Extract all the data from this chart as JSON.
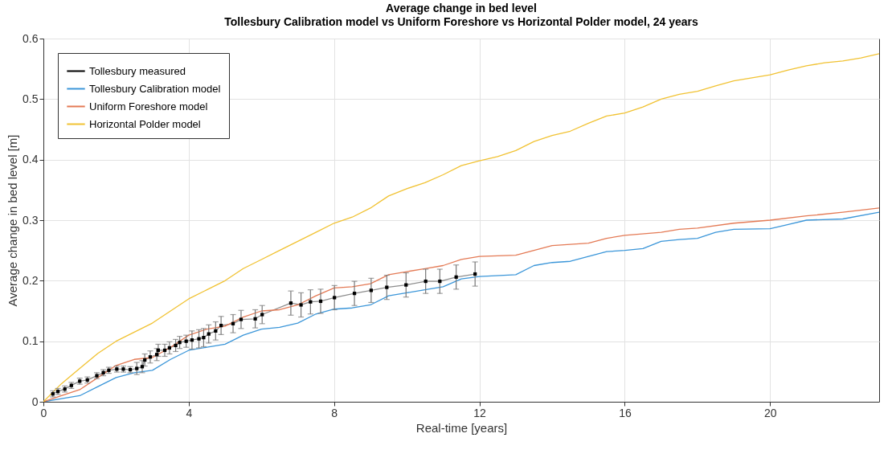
{
  "chart_data": {
    "type": "line",
    "title": "Average change in bed level",
    "subtitle": "Tollesbury Calibration model vs Uniform Foreshore vs Horizontal Polder model, 24 years",
    "xlabel": "Real-time [years]",
    "ylabel": "Average change in bed level [m]",
    "xlim": [
      0,
      23
    ],
    "xticks": [
      0,
      4,
      8,
      12,
      16,
      20
    ],
    "ylim": [
      0,
      0.6
    ],
    "yticks": [
      0,
      0.1,
      0.2,
      0.3,
      0.4,
      0.5,
      0.6
    ],
    "grid": true,
    "legend": "top left",
    "line_style": "solid",
    "series": [
      {
        "name": "Tollesbury measured",
        "color": "#000000",
        "marker": "square",
        "x": [
          0.26,
          0.4,
          0.59,
          0.77,
          1.0,
          1.21,
          1.47,
          1.65,
          1.8,
          2.02,
          2.2,
          2.39,
          2.57,
          2.72,
          2.79,
          2.94,
          3.12,
          3.16,
          3.34,
          3.47,
          3.64,
          3.75,
          3.93,
          4.09,
          4.28,
          4.41,
          4.55,
          4.74,
          4.89,
          5.22,
          5.44,
          5.83,
          6.02,
          6.81,
          7.09,
          7.35,
          7.63,
          8.01,
          8.56,
          9.02,
          9.45,
          9.98,
          10.52,
          10.91,
          11.36,
          11.88
        ],
        "values": [
          0.013,
          0.017,
          0.021,
          0.027,
          0.034,
          0.036,
          0.043,
          0.048,
          0.052,
          0.054,
          0.054,
          0.053,
          0.055,
          0.058,
          0.069,
          0.074,
          0.078,
          0.085,
          0.085,
          0.089,
          0.093,
          0.098,
          0.1,
          0.102,
          0.104,
          0.106,
          0.112,
          0.117,
          0.126,
          0.129,
          0.136,
          0.137,
          0.144,
          0.163,
          0.16,
          0.165,
          0.166,
          0.172,
          0.179,
          0.184,
          0.189,
          0.193,
          0.199,
          0.199,
          0.206,
          0.211
        ],
        "errors": [
          0.005,
          0.005,
          0.005,
          0.005,
          0.005,
          0.005,
          0.005,
          0.005,
          0.005,
          0.005,
          0.005,
          0.005,
          0.01,
          0.01,
          0.01,
          0.01,
          0.01,
          0.01,
          0.01,
          0.01,
          0.01,
          0.01,
          0.01,
          0.015,
          0.015,
          0.015,
          0.015,
          0.015,
          0.015,
          0.015,
          0.015,
          0.015,
          0.015,
          0.02,
          0.02,
          0.02,
          0.02,
          0.02,
          0.02,
          0.02,
          0.02,
          0.02,
          0.02,
          0.02,
          0.02,
          0.02
        ]
      },
      {
        "name": "Tollesbury Calibration model",
        "color": "#3b96d9",
        "x": [
          0,
          0.5,
          1,
          1.5,
          2,
          2.5,
          3,
          3.5,
          4,
          4.5,
          5,
          5.5,
          6,
          6.5,
          7,
          7.5,
          8,
          8.5,
          9,
          9.5,
          10,
          10.5,
          11,
          11.5,
          12,
          13,
          13.5,
          14,
          14.5,
          15,
          15.5,
          16,
          16.5,
          17,
          17.5,
          18,
          18.5,
          19,
          20,
          20.5,
          21,
          22,
          23
        ],
        "values": [
          0,
          0.005,
          0.01,
          0.025,
          0.04,
          0.048,
          0.052,
          0.07,
          0.085,
          0.09,
          0.095,
          0.11,
          0.12,
          0.123,
          0.13,
          0.145,
          0.153,
          0.155,
          0.16,
          0.175,
          0.18,
          0.185,
          0.19,
          0.203,
          0.207,
          0.21,
          0.225,
          0.23,
          0.232,
          0.24,
          0.248,
          0.25,
          0.253,
          0.265,
          0.268,
          0.27,
          0.28,
          0.285,
          0.286,
          0.293,
          0.3,
          0.302,
          0.313
        ]
      },
      {
        "name": "Uniform Foreshore model",
        "color": "#e47a55",
        "x": [
          0,
          0.5,
          1,
          1.5,
          2,
          2.5,
          3,
          3.5,
          4,
          4.5,
          5,
          5.5,
          6,
          6.5,
          7,
          7.5,
          8,
          8.5,
          9,
          9.5,
          10,
          10.5,
          11,
          11.5,
          12,
          13,
          13.5,
          14,
          15,
          15.5,
          16,
          17,
          17.5,
          18,
          19,
          20,
          21,
          22,
          23
        ],
        "values": [
          0,
          0.01,
          0.02,
          0.04,
          0.06,
          0.07,
          0.073,
          0.09,
          0.11,
          0.12,
          0.125,
          0.14,
          0.15,
          0.152,
          0.16,
          0.175,
          0.188,
          0.19,
          0.195,
          0.21,
          0.215,
          0.22,
          0.225,
          0.235,
          0.24,
          0.242,
          0.25,
          0.258,
          0.262,
          0.27,
          0.275,
          0.28,
          0.285,
          0.287,
          0.295,
          0.3,
          0.307,
          0.313,
          0.32
        ]
      },
      {
        "name": "Horizontal Polder model",
        "color": "#f1c232",
        "x": [
          0,
          0.5,
          1,
          1.5,
          2,
          2.5,
          3,
          3.5,
          4,
          4.5,
          5,
          5.5,
          6,
          6.5,
          7,
          7.5,
          8,
          8.5,
          9,
          9.5,
          10,
          10.5,
          11,
          11.5,
          12,
          12.5,
          13,
          13.5,
          14,
          14.5,
          15,
          15.5,
          16,
          16.5,
          17,
          17.5,
          18,
          18.5,
          19,
          19.5,
          20,
          20.5,
          21,
          21.5,
          22,
          22.5,
          23
        ],
        "values": [
          0,
          0.03,
          0.055,
          0.08,
          0.1,
          0.115,
          0.13,
          0.15,
          0.17,
          0.185,
          0.2,
          0.22,
          0.235,
          0.25,
          0.265,
          0.28,
          0.295,
          0.305,
          0.32,
          0.34,
          0.352,
          0.362,
          0.375,
          0.39,
          0.398,
          0.405,
          0.415,
          0.43,
          0.44,
          0.447,
          0.46,
          0.472,
          0.477,
          0.487,
          0.5,
          0.508,
          0.513,
          0.522,
          0.53,
          0.535,
          0.54,
          0.548,
          0.555,
          0.56,
          0.563,
          0.568,
          0.575
        ]
      }
    ]
  }
}
